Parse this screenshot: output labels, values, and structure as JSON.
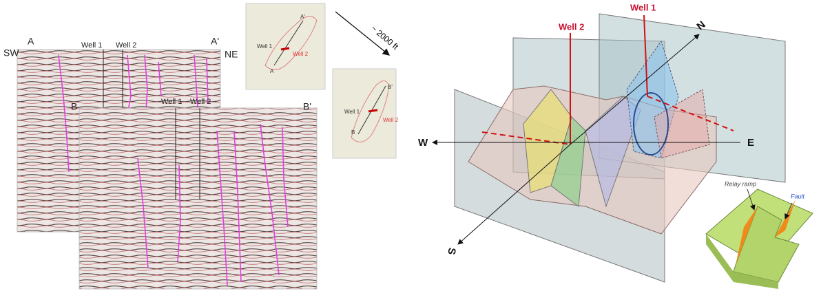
{
  "section_a": {
    "left": "SW",
    "right": "NE",
    "start": "A",
    "end": "A'",
    "well_1": "Well 1",
    "well_2": "Well 2"
  },
  "section_b": {
    "start": "B",
    "end": "B'",
    "well_1": "Well 1",
    "well_2": "Well 2"
  },
  "map_a": {
    "end": "A'",
    "start": "A",
    "well_1": "Well 1",
    "well_2": "Well 2"
  },
  "map_b": {
    "end": "B'",
    "start": "B",
    "well_1": "Well 1",
    "well_2": "Well 2"
  },
  "offset_note": "~ 2000 ft",
  "model": {
    "well_2": "Well 2",
    "well_1": "Well 1",
    "north": "N",
    "west": "W",
    "east": "E",
    "south": "S"
  },
  "inset": {
    "relay_ramp": "Relay ramp",
    "fault": "Fault"
  }
}
